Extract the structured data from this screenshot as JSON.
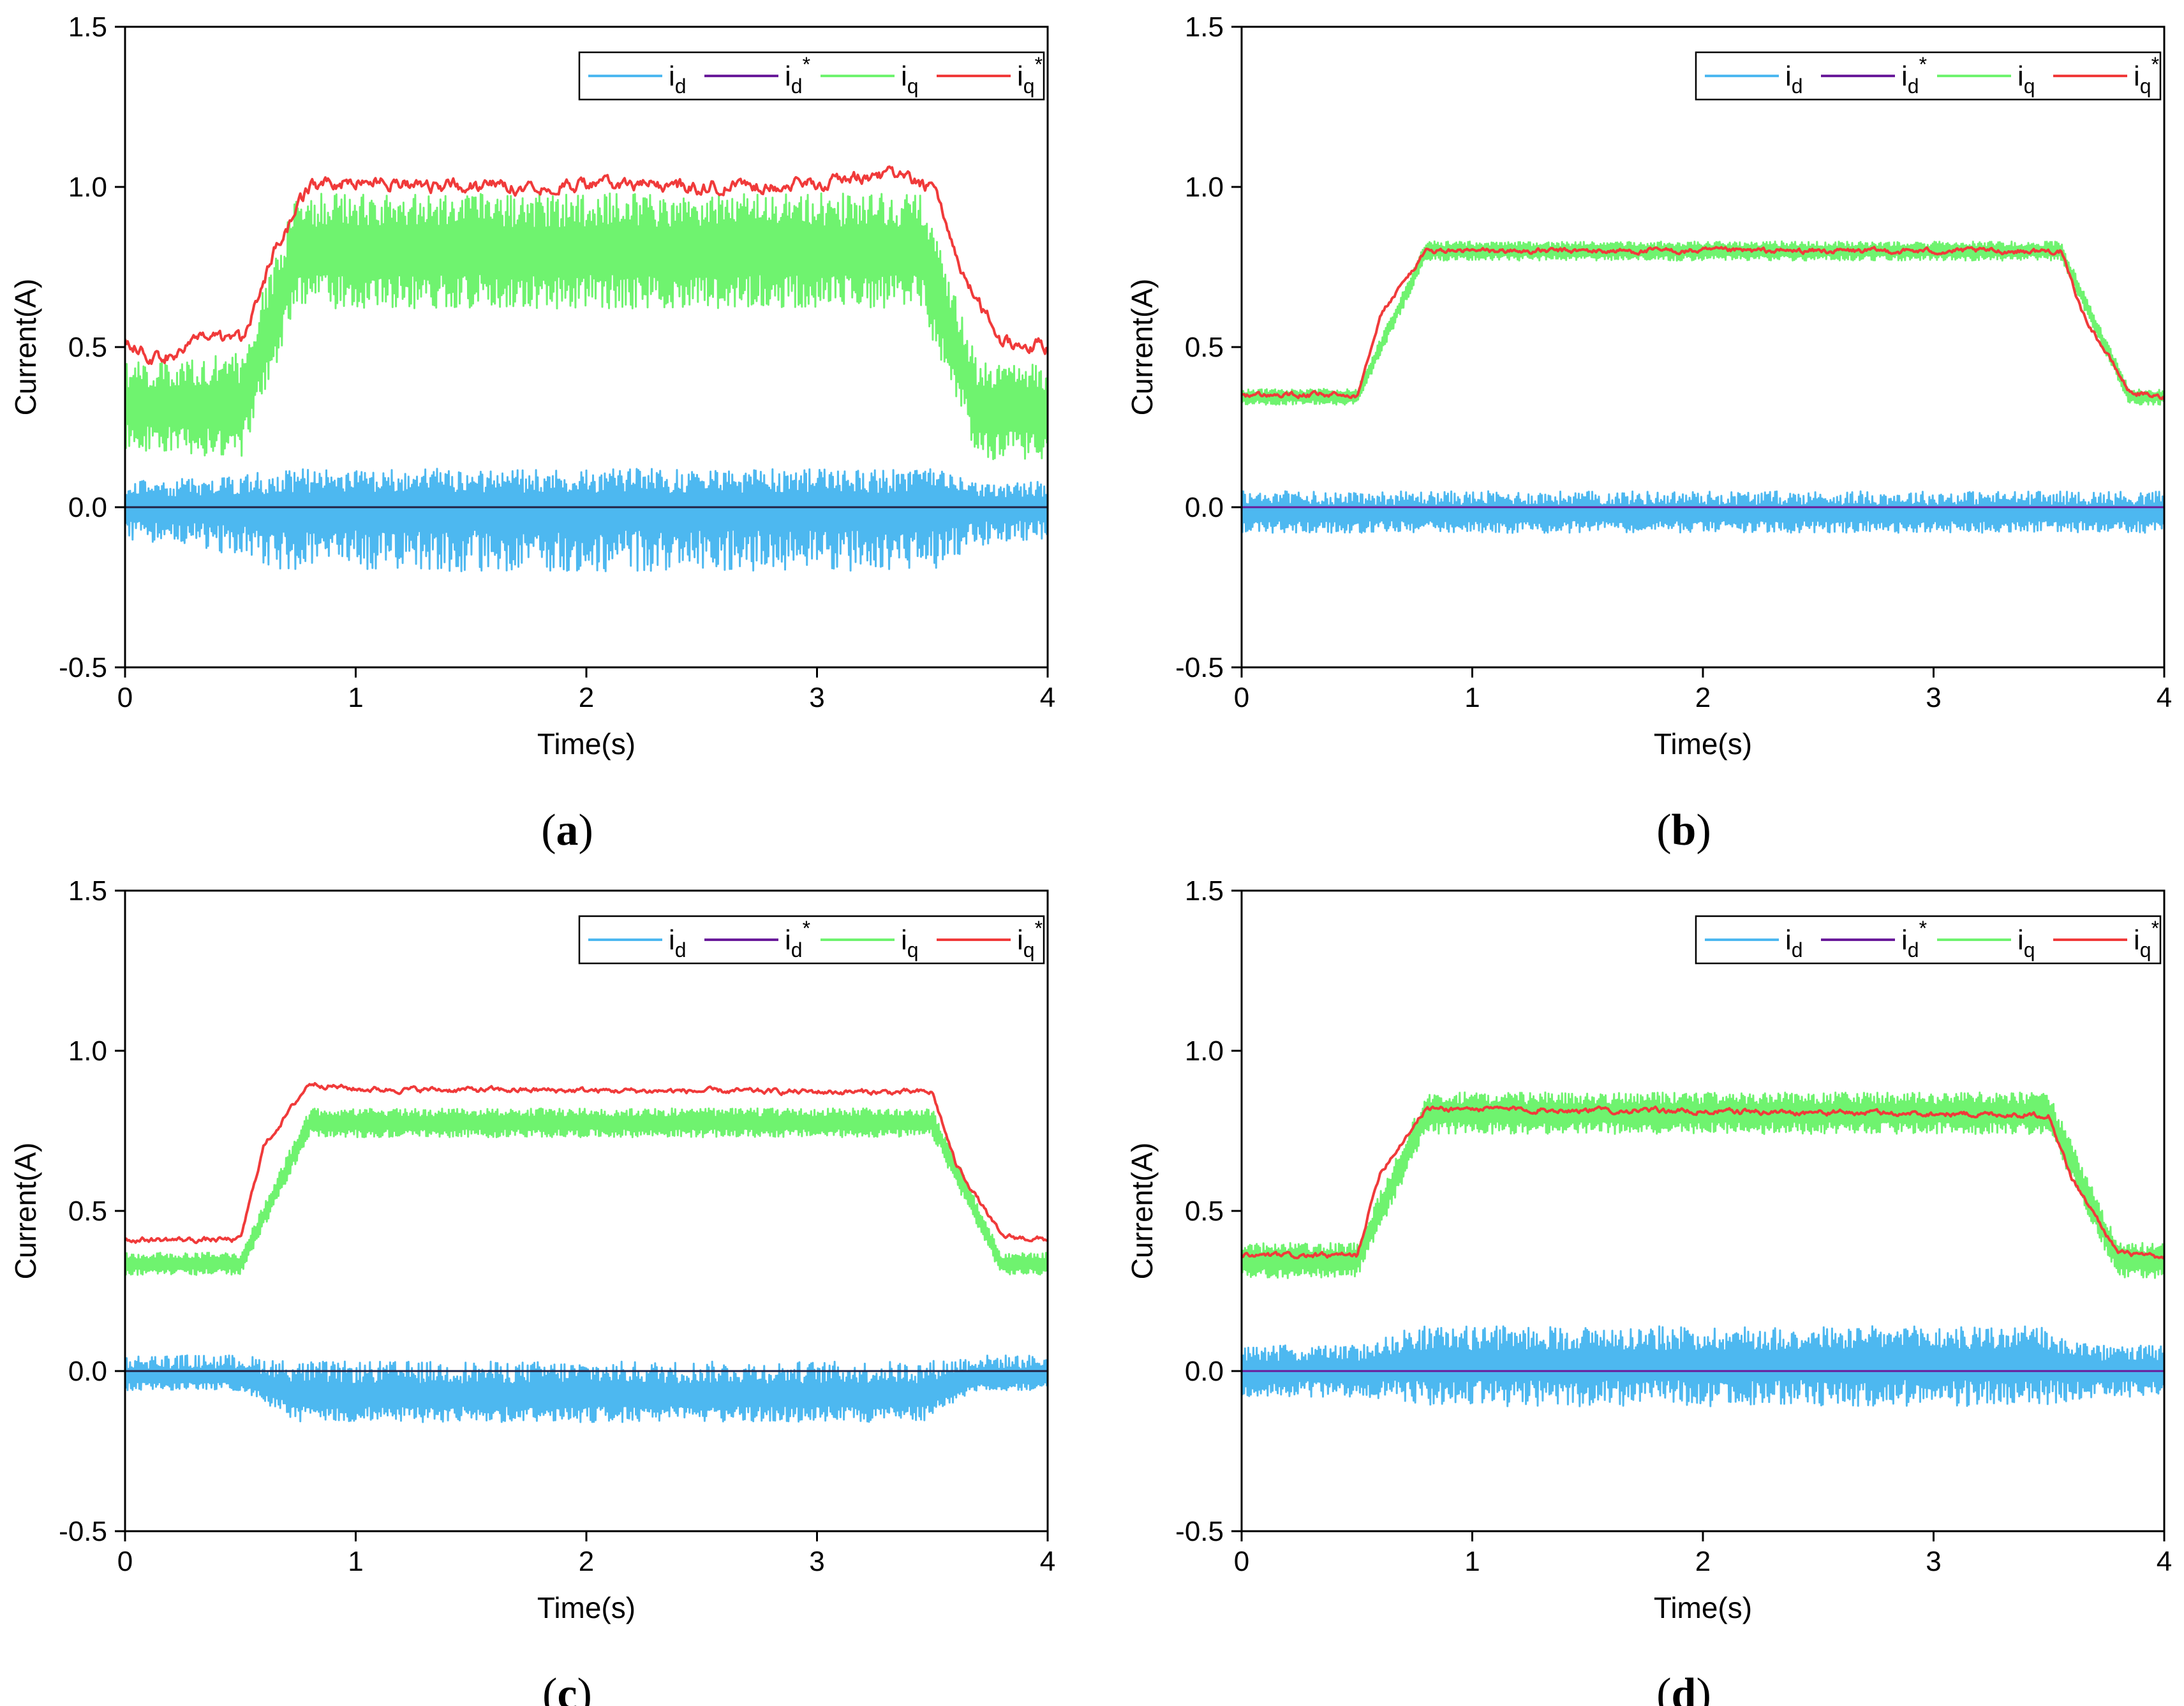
{
  "figure": {
    "panels": [
      "(a)",
      "(b)",
      "(c)",
      "(d)"
    ]
  },
  "colors": {
    "id": "#4db8f0",
    "id_ref": "#6a1b9a",
    "iq": "#6ff36f",
    "iq_ref": "#f03a3a",
    "axis": "#000000"
  },
  "chart_data": [
    {
      "panel": "a",
      "caption_letter": "a",
      "type": "line",
      "xlabel": "Time(s)",
      "ylabel": "Current(A)",
      "xlim": [
        0,
        4
      ],
      "ylim": [
        -0.5,
        1.5
      ],
      "xticks": [
        "0",
        "1",
        "2",
        "3",
        "4"
      ],
      "yticks": [
        "-0.5",
        "0.0",
        "0.5",
        "1.0",
        "1.5"
      ],
      "legend": [
        "i_d",
        "i_d*",
        "i_q",
        "i_q*"
      ],
      "legend_position": "top-right",
      "series": [
        {
          "name": "i_d",
          "color": "#4db8f0",
          "x": [
            0,
            0.5,
            0.7,
            3.5,
            3.7,
            4
          ],
          "center": [
            0,
            0,
            0,
            0,
            0,
            0
          ],
          "band_upper": [
            0.08,
            0.1,
            0.12,
            0.12,
            0.08,
            0.08
          ],
          "band_lower": [
            -0.1,
            -0.15,
            -0.2,
            -0.2,
            -0.12,
            -0.1
          ]
        },
        {
          "name": "i_d*",
          "color": "#6a1b9a",
          "x": [
            0,
            4
          ],
          "values": [
            0,
            0
          ]
        },
        {
          "name": "i_q",
          "color": "#6ff36f",
          "x": [
            0,
            0.5,
            0.75,
            3.45,
            3.7,
            4
          ],
          "band_upper": [
            0.45,
            0.48,
            0.98,
            0.98,
            0.45,
            0.45
          ],
          "band_lower": [
            0.18,
            0.15,
            0.62,
            0.62,
            0.15,
            0.15
          ]
        },
        {
          "name": "i_q*",
          "color": "#f03a3a",
          "x": [
            0,
            0.15,
            0.3,
            0.5,
            0.65,
            0.8,
            1.0,
            1.5,
            2.0,
            2.5,
            3.0,
            3.3,
            3.5,
            3.65,
            3.8,
            4
          ],
          "values": [
            0.52,
            0.46,
            0.52,
            0.52,
            0.8,
            1.0,
            1.02,
            1.0,
            1.01,
            1.0,
            1.01,
            1.04,
            1.0,
            0.7,
            0.52,
            0.5
          ]
        }
      ]
    },
    {
      "panel": "b",
      "caption_letter": "b",
      "type": "line",
      "xlabel": "Time(s)",
      "ylabel": "Current(A)",
      "xlim": [
        0,
        4
      ],
      "ylim": [
        -0.5,
        1.5
      ],
      "xticks": [
        "0",
        "1",
        "2",
        "3",
        "4"
      ],
      "yticks": [
        "-0.5",
        "0.0",
        "0.5",
        "1.0",
        "1.5"
      ],
      "legend": [
        "i_d",
        "i_d*",
        "i_q",
        "i_q*"
      ],
      "legend_position": "top-right",
      "series": [
        {
          "name": "i_d",
          "color": "#4db8f0",
          "x": [
            0,
            4
          ],
          "center": [
            -0.02,
            -0.02
          ],
          "band_upper": [
            0.05,
            0.05
          ],
          "band_lower": [
            -0.08,
            -0.08
          ]
        },
        {
          "name": "i_d*",
          "color": "#6a1b9a",
          "x": [
            0,
            4
          ],
          "values": [
            0,
            0
          ]
        },
        {
          "name": "i_q",
          "color": "#6ff36f",
          "x": [
            0,
            0.5,
            0.8,
            3.55,
            3.85,
            4
          ],
          "band_upper": [
            0.37,
            0.37,
            0.83,
            0.83,
            0.37,
            0.37
          ],
          "band_lower": [
            0.32,
            0.32,
            0.77,
            0.77,
            0.32,
            0.32
          ]
        },
        {
          "name": "i_q*",
          "color": "#f03a3a",
          "x": [
            0,
            0.5,
            0.6,
            0.8,
            3.55,
            3.65,
            3.85,
            4
          ],
          "values": [
            0.35,
            0.35,
            0.6,
            0.8,
            0.8,
            0.6,
            0.36,
            0.34
          ]
        }
      ]
    },
    {
      "panel": "c",
      "caption_letter": "c",
      "type": "line",
      "xlabel": "Time(s)",
      "ylabel": "Current(A)",
      "xlim": [
        0,
        4
      ],
      "ylim": [
        -0.5,
        1.5
      ],
      "xticks": [
        "0",
        "1",
        "2",
        "3",
        "4"
      ],
      "yticks": [
        "-0.5",
        "0.0",
        "0.5",
        "1.0",
        "1.5"
      ],
      "legend": [
        "i_d",
        "i_d*",
        "i_q",
        "i_q*"
      ],
      "legend_position": "top-right",
      "series": [
        {
          "name": "i_d",
          "color": "#4db8f0",
          "x": [
            0,
            0.5,
            0.75,
            3.45,
            3.7,
            4
          ],
          "center": [
            -0.02,
            -0.02,
            -0.08,
            -0.08,
            -0.02,
            -0.02
          ],
          "band_upper": [
            0.05,
            0.05,
            0.03,
            0.03,
            0.05,
            0.05
          ],
          "band_lower": [
            -0.06,
            -0.06,
            -0.16,
            -0.16,
            -0.06,
            -0.06
          ]
        },
        {
          "name": "i_d*",
          "color": "#6a1b9a",
          "x": [
            0,
            4
          ],
          "values": [
            0,
            0
          ]
        },
        {
          "name": "i_q",
          "color": "#6ff36f",
          "x": [
            0,
            0.5,
            0.8,
            3.5,
            3.8,
            4
          ],
          "band_upper": [
            0.37,
            0.37,
            0.82,
            0.82,
            0.37,
            0.37
          ],
          "band_lower": [
            0.3,
            0.3,
            0.73,
            0.73,
            0.3,
            0.3
          ]
        },
        {
          "name": "i_q*",
          "color": "#f03a3a",
          "x": [
            0,
            0.5,
            0.6,
            0.8,
            1.0,
            3.5,
            3.6,
            3.8,
            4
          ],
          "values": [
            0.41,
            0.41,
            0.7,
            0.9,
            0.88,
            0.87,
            0.65,
            0.42,
            0.41
          ]
        }
      ]
    },
    {
      "panel": "d",
      "caption_letter": "d",
      "type": "line",
      "xlabel": "Time(s)",
      "ylabel": "Current(A)",
      "xlim": [
        0,
        4
      ],
      "ylim": [
        -0.5,
        1.5
      ],
      "xticks": [
        "0",
        "1",
        "2",
        "3",
        "4"
      ],
      "yticks": [
        "-0.5",
        "0.0",
        "0.5",
        "1.0",
        "1.5"
      ],
      "legend": [
        "i_d",
        "i_d*",
        "i_q",
        "i_q*"
      ],
      "legend_position": "top-right",
      "series": [
        {
          "name": "i_d",
          "color": "#4db8f0",
          "x": [
            0,
            0.5,
            0.75,
            3.45,
            3.7,
            4
          ],
          "center": [
            0,
            0,
            0.02,
            0.02,
            0,
            0
          ],
          "band_upper": [
            0.08,
            0.08,
            0.14,
            0.14,
            0.08,
            0.08
          ],
          "band_lower": [
            -0.08,
            -0.08,
            -0.11,
            -0.11,
            -0.08,
            -0.08
          ]
        },
        {
          "name": "i_d*",
          "color": "#6a1b9a",
          "x": [
            0,
            4
          ],
          "values": [
            0,
            0
          ]
        },
        {
          "name": "i_q",
          "color": "#6ff36f",
          "x": [
            0,
            0.5,
            0.8,
            3.5,
            3.8,
            4
          ],
          "band_upper": [
            0.4,
            0.4,
            0.87,
            0.87,
            0.4,
            0.4
          ],
          "band_lower": [
            0.29,
            0.29,
            0.74,
            0.74,
            0.29,
            0.29
          ]
        },
        {
          "name": "i_q*",
          "color": "#f03a3a",
          "x": [
            0,
            0.5,
            0.6,
            0.8,
            3.5,
            3.6,
            3.8,
            4
          ],
          "values": [
            0.36,
            0.36,
            0.62,
            0.82,
            0.8,
            0.6,
            0.37,
            0.35
          ]
        }
      ]
    }
  ]
}
